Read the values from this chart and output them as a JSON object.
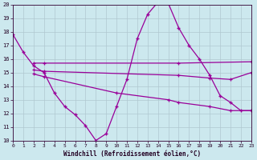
{
  "xlabel": "Windchill (Refroidissement éolien,°C)",
  "xlim": [
    0,
    23
  ],
  "ylim": [
    10,
    20
  ],
  "xticks": [
    0,
    1,
    2,
    3,
    4,
    5,
    6,
    7,
    8,
    9,
    10,
    11,
    12,
    13,
    14,
    15,
    16,
    17,
    18,
    19,
    20,
    21,
    22,
    23
  ],
  "yticks": [
    10,
    11,
    12,
    13,
    14,
    15,
    16,
    17,
    18,
    19,
    20
  ],
  "bg_color": "#cce8ee",
  "line_color": "#990099",
  "grid_color": "#b0c8d0",
  "lines": [
    {
      "x": [
        0,
        1,
        2,
        3,
        4,
        5,
        6,
        7,
        8,
        9,
        10,
        11,
        12,
        13,
        14,
        15,
        16,
        17,
        18,
        19,
        20,
        21,
        22,
        23
      ],
      "y": [
        17.8,
        16.5,
        15.5,
        15.0,
        13.5,
        12.5,
        11.9,
        11.1,
        10.0,
        10.5,
        12.5,
        14.5,
        17.5,
        19.3,
        20.2,
        20.1,
        18.3,
        17.0,
        16.0,
        14.8,
        13.3,
        12.8,
        12.2,
        12.2
      ]
    },
    {
      "x": [
        2,
        3,
        16,
        23
      ],
      "y": [
        15.7,
        15.7,
        15.7,
        15.8
      ]
    },
    {
      "x": [
        2,
        3,
        16,
        19,
        21,
        23
      ],
      "y": [
        15.2,
        15.1,
        14.8,
        14.6,
        14.5,
        15.0
      ]
    },
    {
      "x": [
        2,
        3,
        10,
        15,
        16,
        19,
        21,
        23
      ],
      "y": [
        14.9,
        14.7,
        13.5,
        13.0,
        12.8,
        12.5,
        12.2,
        12.2
      ]
    }
  ]
}
